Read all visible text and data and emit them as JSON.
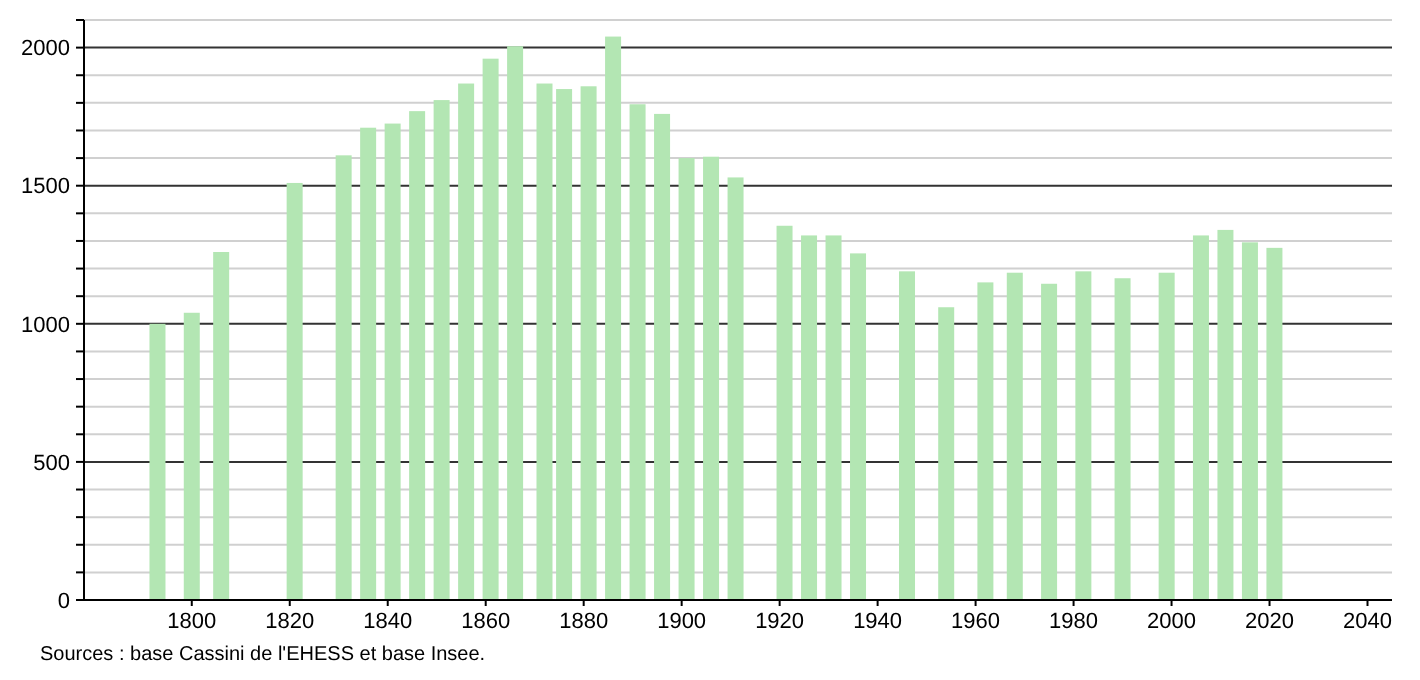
{
  "chart_data": {
    "type": "bar",
    "x": [
      1793,
      1800,
      1806,
      1821,
      1831,
      1836,
      1841,
      1846,
      1851,
      1856,
      1861,
      1866,
      1872,
      1876,
      1881,
      1886,
      1891,
      1896,
      1901,
      1906,
      1911,
      1921,
      1926,
      1931,
      1936,
      1946,
      1954,
      1962,
      1968,
      1975,
      1982,
      1990,
      1999,
      2006,
      2011,
      2016,
      2021
    ],
    "values": [
      1000,
      1040,
      1260,
      1510,
      1610,
      1710,
      1725,
      1770,
      1810,
      1870,
      1960,
      2005,
      1870,
      1850,
      1860,
      2040,
      1795,
      1760,
      1600,
      1605,
      1530,
      1355,
      1320,
      1320,
      1255,
      1190,
      1060,
      1150,
      1185,
      1145,
      1190,
      1165,
      1185,
      1320,
      1340,
      1295,
      1275
    ],
    "color": "#b3e6b3",
    "xlim": [
      1778,
      2045
    ],
    "xticks": [
      1800,
      1820,
      1840,
      1860,
      1880,
      1900,
      1920,
      1940,
      1960,
      1980,
      2000,
      2020,
      2040
    ],
    "ylim": [
      0,
      2100
    ],
    "yticks": [
      0,
      {
        "value": 100,
        "label": null
      },
      {
        "value": 200,
        "label": null
      },
      {
        "value": 300,
        "label": null
      },
      {
        "value": 400,
        "label": null
      },
      500,
      {
        "value": 600,
        "label": null
      },
      {
        "value": 700,
        "label": null
      },
      {
        "value": 800,
        "label": null
      },
      {
        "value": 900,
        "label": null
      },
      1000,
      {
        "value": 1100,
        "label": null
      },
      {
        "value": 1200,
        "label": null
      },
      {
        "value": 1300,
        "label": null
      },
      {
        "value": 1400,
        "label": null
      },
      1500,
      {
        "value": 1600,
        "label": null
      },
      {
        "value": 1700,
        "label": null
      },
      {
        "value": 1800,
        "label": null
      },
      {
        "value": 1900,
        "label": null
      },
      2000,
      {
        "value": 2100,
        "label": null
      }
    ],
    "grid": true,
    "annotations": [
      "Sources : base Cassini de l'EHESS et base Insee."
    ]
  }
}
